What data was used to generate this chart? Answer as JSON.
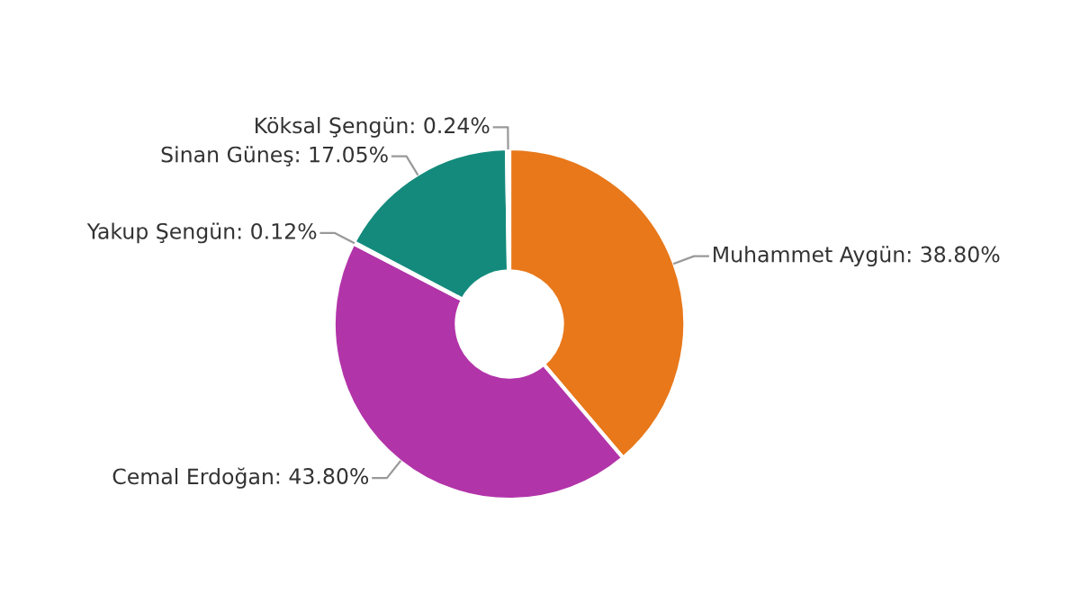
{
  "chart_data": {
    "type": "donut",
    "categories": [
      "Muhammet Aygün",
      "Cemal Erdoğan",
      "Yakup Şengün",
      "Sinan Güneş",
      "Köksal Şengün"
    ],
    "values": [
      38.8,
      43.8,
      0.12,
      17.05,
      0.24
    ],
    "colors": [
      "#e8781a",
      "#b234a9",
      "#4a6fc2",
      "#138a7c",
      "#d9b43a"
    ],
    "value_labels": [
      ": 38.80%",
      ": 43.80%",
      ": 0.12%",
      ": 17.05%",
      ": 0.24%"
    ]
  }
}
